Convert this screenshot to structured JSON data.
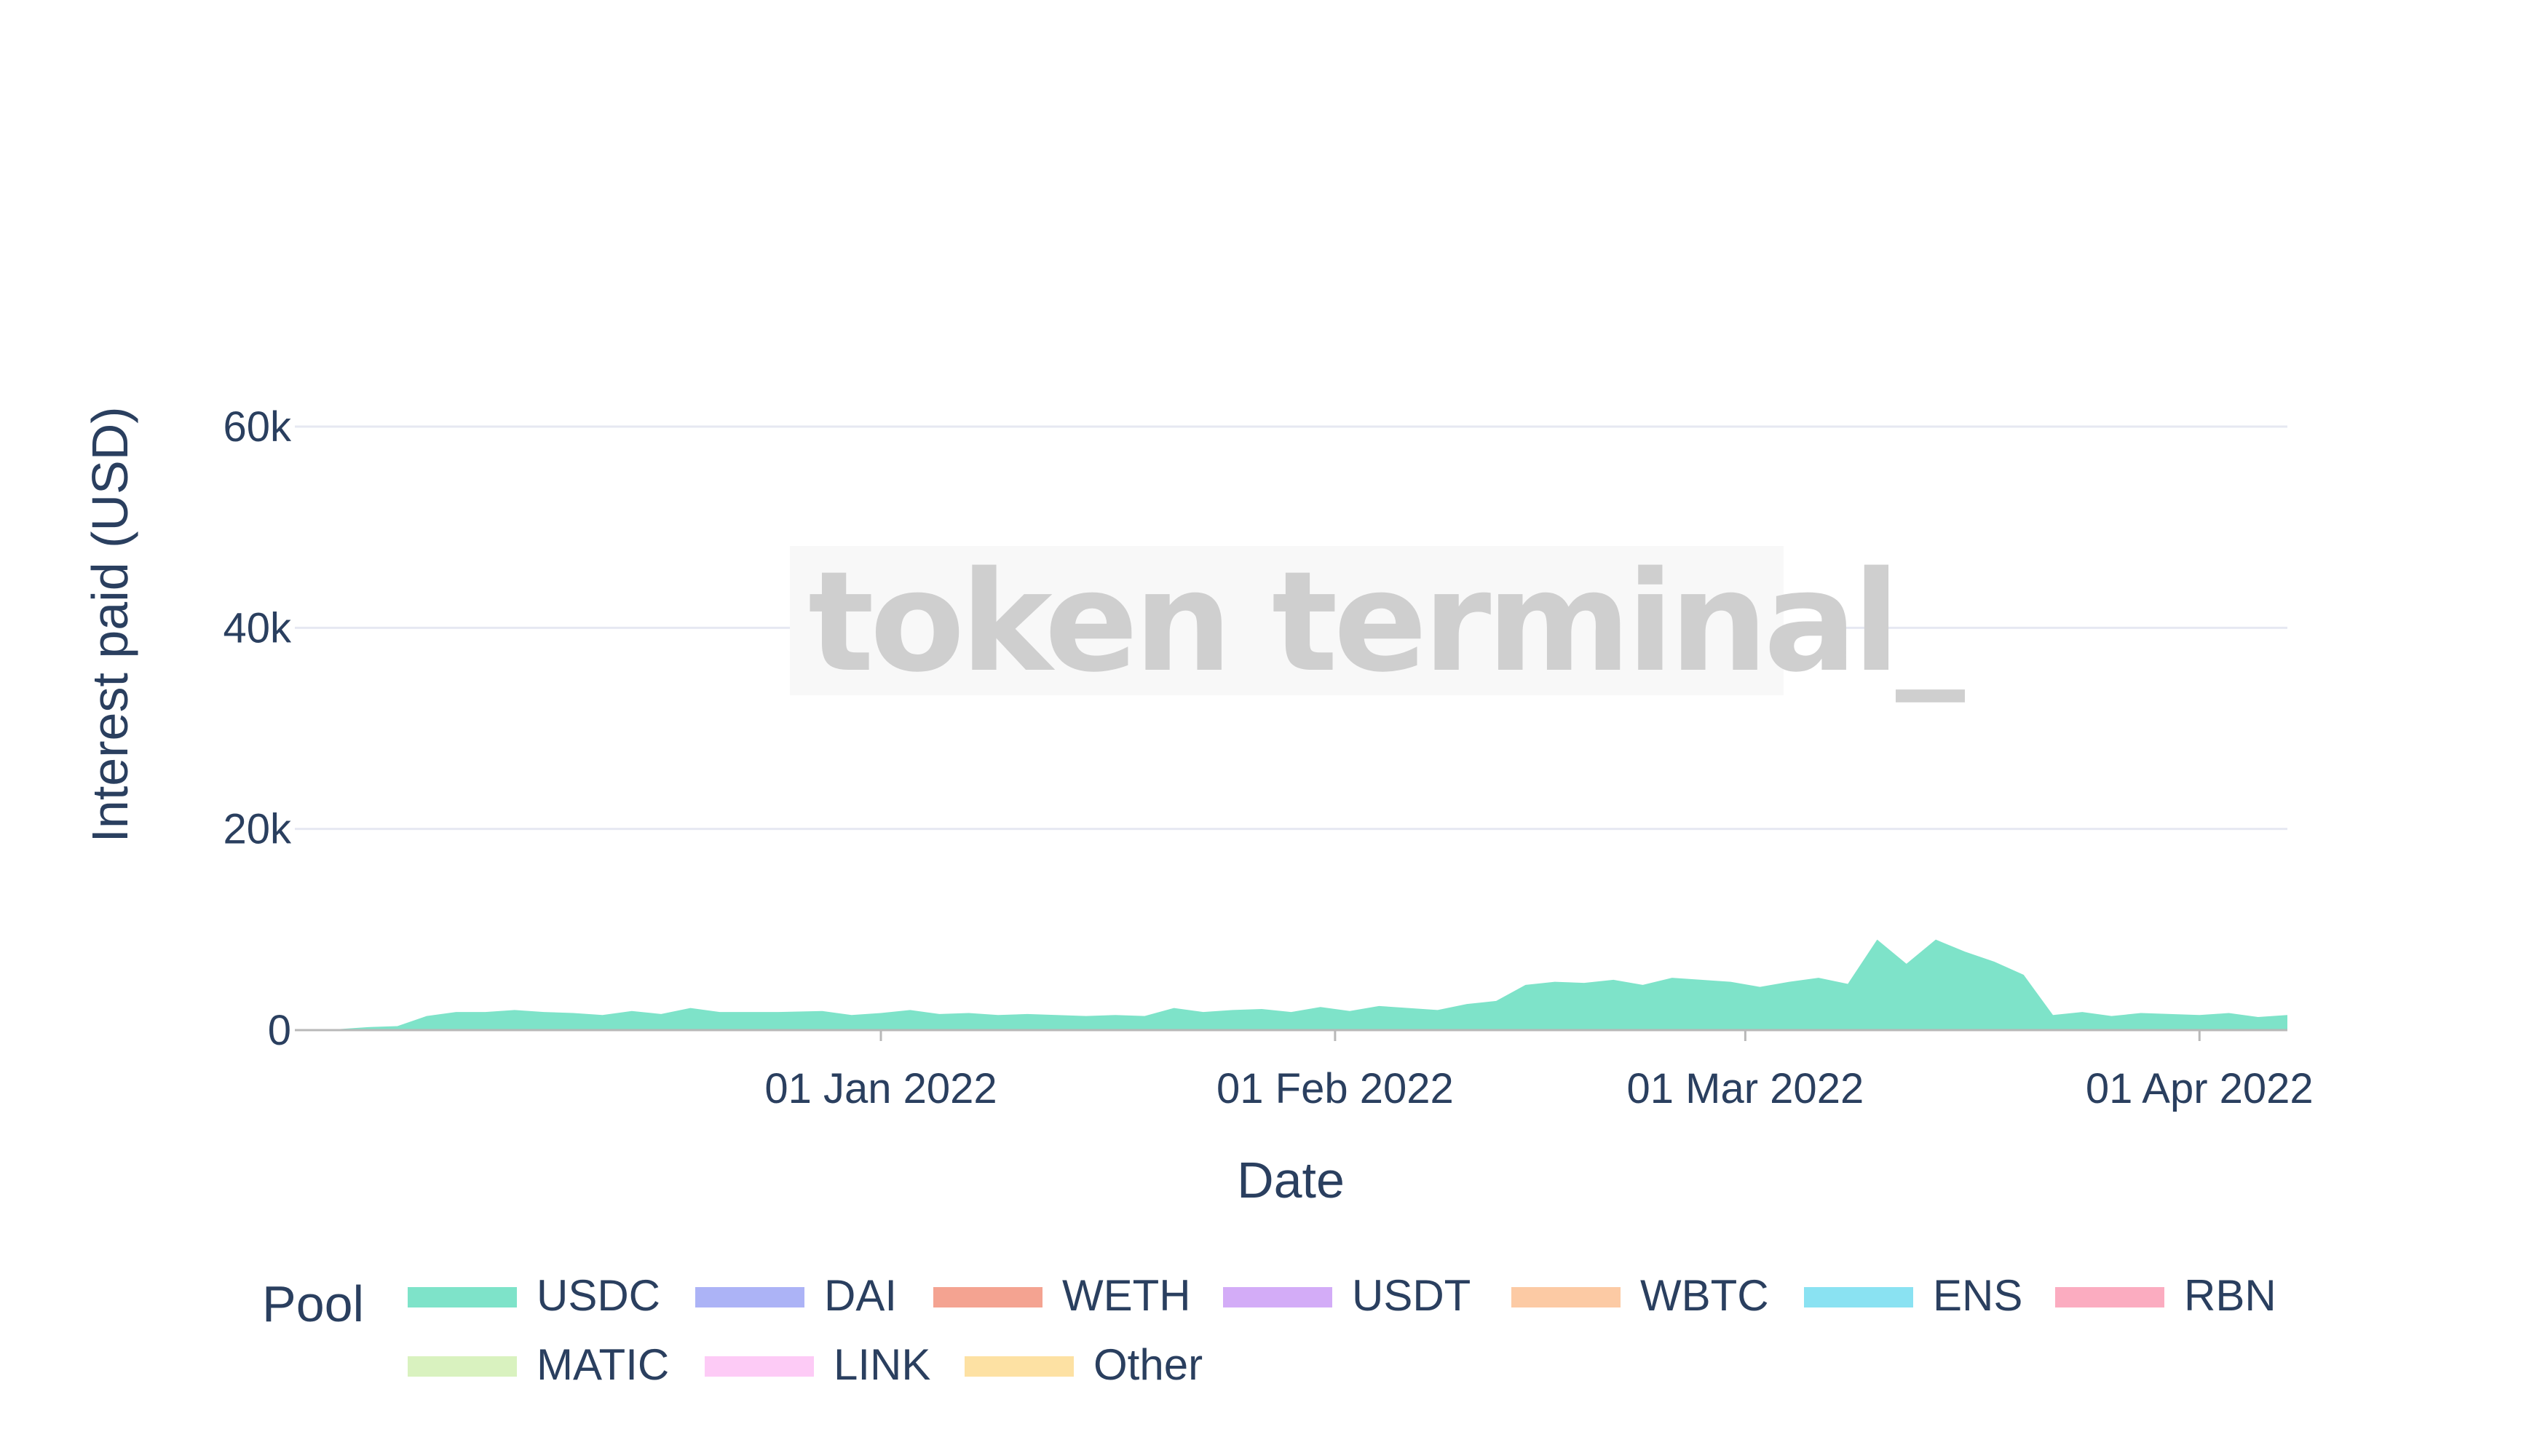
{
  "colors": {
    "USDC": "#7ee3c9",
    "DAI": "#acb3f6",
    "WETH": "#f4a391",
    "USDT": "#d3acf7",
    "WBTC": "#fccaa4",
    "ENS": "#8ae2f2",
    "RBN": "#fbacc0",
    "MATIC": "#d9f2bf",
    "LINK": "#fdcbf6",
    "Other": "#fde1a3"
  },
  "watermark": "token terminal_",
  "chart_data": {
    "type": "area",
    "stacked": true,
    "xlabel": "Date",
    "ylabel": "Interest paid (USD)",
    "ylim": [
      0,
      76000
    ],
    "y_ticks": [
      {
        "value": 0,
        "label": "0"
      },
      {
        "value": 20000,
        "label": "20k"
      },
      {
        "value": 40000,
        "label": "40k"
      },
      {
        "value": 60000,
        "label": "60k"
      }
    ],
    "x_range": [
      "2021-11-22",
      "2022-04-07"
    ],
    "x_ticks": [
      {
        "date": "2022-01-01",
        "label": "01 Jan 2022"
      },
      {
        "date": "2022-02-01",
        "label": "01 Feb 2022"
      },
      {
        "date": "2022-03-01",
        "label": "01 Mar 2022"
      },
      {
        "date": "2022-04-01",
        "label": "01 Apr 2022"
      }
    ],
    "grid": true,
    "legend": {
      "title": "Pool",
      "position": "bottom"
    },
    "series": [
      {
        "name": "USDC",
        "points": [
          [
            "2021-11-22",
            0
          ],
          [
            "2021-11-25",
            100
          ],
          [
            "2021-11-27",
            300
          ],
          [
            "2021-11-29",
            400
          ],
          [
            "2021-12-01",
            1400
          ],
          [
            "2021-12-03",
            1800
          ],
          [
            "2021-12-05",
            1800
          ],
          [
            "2021-12-07",
            2000
          ],
          [
            "2021-12-09",
            1800
          ],
          [
            "2021-12-11",
            1700
          ],
          [
            "2021-12-13",
            1500
          ],
          [
            "2021-12-15",
            1900
          ],
          [
            "2021-12-17",
            1600
          ],
          [
            "2021-12-19",
            2200
          ],
          [
            "2021-12-21",
            1800
          ],
          [
            "2021-12-23",
            1800
          ],
          [
            "2021-12-25",
            1800
          ],
          [
            "2021-12-28",
            1900
          ],
          [
            "2021-12-30",
            1500
          ],
          [
            "2022-01-01",
            1700
          ],
          [
            "2022-01-03",
            2000
          ],
          [
            "2022-01-05",
            1600
          ],
          [
            "2022-01-07",
            1700
          ],
          [
            "2022-01-09",
            1500
          ],
          [
            "2022-01-11",
            1600
          ],
          [
            "2022-01-13",
            1500
          ],
          [
            "2022-01-15",
            1400
          ],
          [
            "2022-01-17",
            1500
          ],
          [
            "2022-01-19",
            1400
          ],
          [
            "2022-01-21",
            2200
          ],
          [
            "2022-01-23",
            1800
          ],
          [
            "2022-01-25",
            2000
          ],
          [
            "2022-01-27",
            2100
          ],
          [
            "2022-01-29",
            1800
          ],
          [
            "2022-01-31",
            2300
          ],
          [
            "2022-02-02",
            1900
          ],
          [
            "2022-02-04",
            2400
          ],
          [
            "2022-02-06",
            2200
          ],
          [
            "2022-02-08",
            2000
          ],
          [
            "2022-02-10",
            2600
          ],
          [
            "2022-02-12",
            2900
          ],
          [
            "2022-02-14",
            4500
          ],
          [
            "2022-02-16",
            4800
          ],
          [
            "2022-02-18",
            4700
          ],
          [
            "2022-02-20",
            5000
          ],
          [
            "2022-02-22",
            4500
          ],
          [
            "2022-02-24",
            5200
          ],
          [
            "2022-02-26",
            5000
          ],
          [
            "2022-02-28",
            4800
          ],
          [
            "2022-03-02",
            4300
          ],
          [
            "2022-03-04",
            4800
          ],
          [
            "2022-03-06",
            5200
          ],
          [
            "2022-03-08",
            4600
          ],
          [
            "2022-03-10",
            9000
          ],
          [
            "2022-03-12",
            6600
          ],
          [
            "2022-03-14",
            9000
          ],
          [
            "2022-03-16",
            7800
          ],
          [
            "2022-03-18",
            6800
          ],
          [
            "2022-03-20",
            5500
          ],
          [
            "2022-03-22",
            1500
          ],
          [
            "2022-03-24",
            1800
          ],
          [
            "2022-03-26",
            1400
          ],
          [
            "2022-03-28",
            1700
          ],
          [
            "2022-03-30",
            1600
          ],
          [
            "2022-04-01",
            1500
          ],
          [
            "2022-04-03",
            1700
          ],
          [
            "2022-04-05",
            1300
          ],
          [
            "2022-04-07",
            1500
          ]
        ]
      }
    ]
  }
}
